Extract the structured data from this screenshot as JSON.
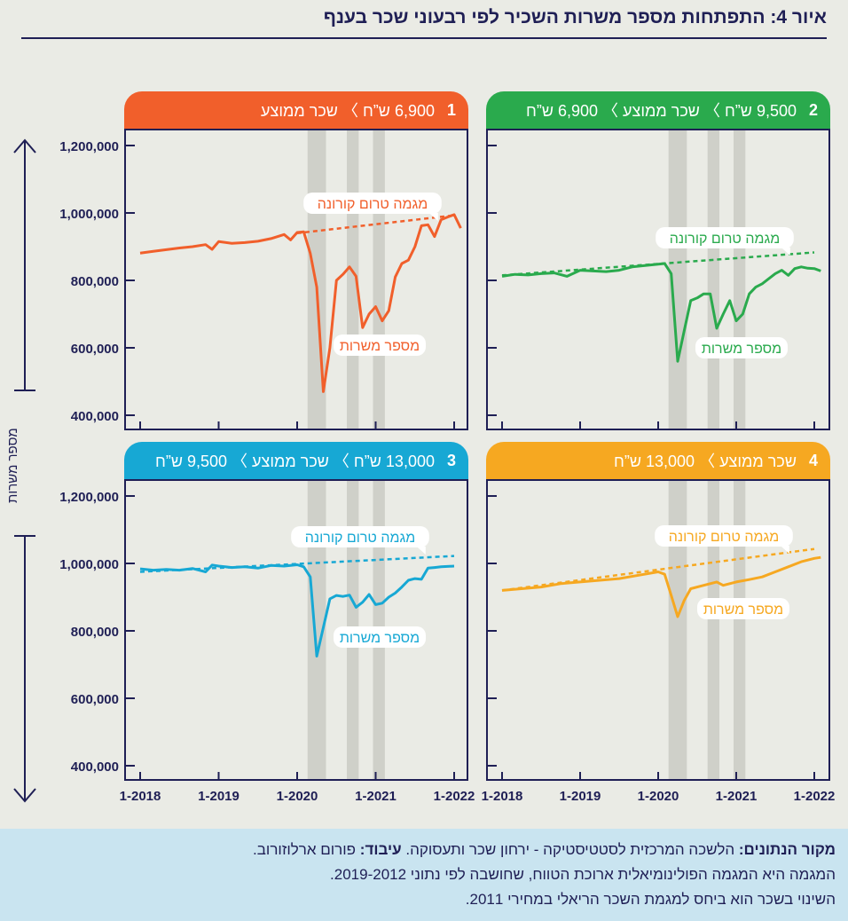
{
  "title": "איור 4: התפתחות מספר משרות השכיר לפי רבעוני שכר בענף",
  "y_axis_title": "מספר משרות",
  "colors": {
    "navy": "#1f1f55",
    "panel1": "#f15f2b",
    "panel2": "#2aaa4d",
    "panel3": "#17a8d4",
    "panel4": "#f6a821",
    "shade": "#cfd0c9"
  },
  "panels": [
    {
      "id": "1",
      "number": "1",
      "header": "6,900 ש”ח  〉 שכר ממוצע",
      "color": "#f15f2b"
    },
    {
      "id": "2",
      "number": "2",
      "header": "9,500 ש”ח 〉 שכר ממוצע 〉 6,900 ש”ח",
      "color": "#2aaa4d"
    },
    {
      "id": "3",
      "number": "3",
      "header": "13,000 ש”ח 〉 שכר ממוצע 〉 9,500 ש”ח",
      "color": "#17a8d4"
    },
    {
      "id": "4",
      "number": "4",
      "header": "שכר ממוצע 〉 13,000 ש”ח",
      "color": "#f6a821"
    }
  ],
  "footer": {
    "source_label": "מקור הנתונים:",
    "source_text": " הלשכה המרכזית לסטטיסטיקה - ירחון שכר ותעסוקה. ",
    "processing_label": "עיבוד:",
    "processing_text": " פורום ארלוזורוב.",
    "line2": "המגמה היא המגמה הפולינומיאלית ארוכת הטווח, שחושבה לפי נתוני 2019-2012.",
    "line3": "השינוי בשכר הוא ביחס למגמת השכר הריאלי במחירי 2011."
  },
  "chart_data": [
    {
      "type": "line",
      "panel": "1",
      "x_ticks": [
        "1-2018",
        "1-2019",
        "1-2020",
        "1-2021",
        "1-2022"
      ],
      "y_ticks": [
        "400,000",
        "600,000",
        "800,000",
        "1,000,000",
        "1,200,000"
      ],
      "ylim": [
        370000,
        1230000
      ],
      "shaded_periods": [
        [
          "2020-03",
          "2020-05"
        ],
        [
          "2020-09",
          "2020-10"
        ],
        [
          "2021-01",
          "2021-02"
        ]
      ],
      "series": [
        {
          "name": "מספר משרות",
          "style": "solid",
          "points": [
            [
              "2018-01",
              881000
            ],
            [
              "2018-03",
              886000
            ],
            [
              "2018-05",
              891000
            ],
            [
              "2018-07",
              896000
            ],
            [
              "2018-09",
              900000
            ],
            [
              "2018-11",
              906000
            ],
            [
              "2018-12",
              892000
            ],
            [
              "2019-01",
              915000
            ],
            [
              "2019-03",
              910000
            ],
            [
              "2019-05",
              912000
            ],
            [
              "2019-07",
              916000
            ],
            [
              "2019-09",
              924000
            ],
            [
              "2019-11",
              936000
            ],
            [
              "2019-12",
              920000
            ],
            [
              "2020-01",
              942000
            ],
            [
              "2020-02",
              944000
            ],
            [
              "2020-03",
              880000
            ],
            [
              "2020-04",
              780000
            ],
            [
              "2020-05",
              470000
            ],
            [
              "2020-06",
              600000
            ],
            [
              "2020-07",
              800000
            ],
            [
              "2020-08",
              818000
            ],
            [
              "2020-09",
              840000
            ],
            [
              "2020-10",
              812000
            ],
            [
              "2020-11",
              660000
            ],
            [
              "2020-12",
              700000
            ],
            [
              "2021-01",
              722000
            ],
            [
              "2021-02",
              680000
            ],
            [
              "2021-03",
              710000
            ],
            [
              "2021-04",
              810000
            ],
            [
              "2021-05",
              850000
            ],
            [
              "2021-06",
              860000
            ],
            [
              "2021-07",
              900000
            ],
            [
              "2021-08",
              962000
            ],
            [
              "2021-09",
              965000
            ],
            [
              "2021-10",
              930000
            ],
            [
              "2021-11",
              980000
            ],
            [
              "2021-12",
              988000
            ],
            [
              "2022-01",
              995000
            ],
            [
              "2022-02",
              955000
            ]
          ]
        },
        {
          "name": "מגמה טרום קורונה",
          "style": "dashed",
          "points": [
            [
              "2020-01",
              940000
            ],
            [
              "2022-01",
              993000
            ]
          ]
        }
      ],
      "annotations": [
        {
          "text": "מגמה טרום קורונה",
          "target": "trend"
        },
        {
          "text": "מספר משרות",
          "target": "series"
        }
      ]
    },
    {
      "type": "line",
      "panel": "2",
      "x_ticks": [
        "1-2018",
        "1-2019",
        "1-2020",
        "1-2021",
        "1-2022"
      ],
      "ylim": [
        370000,
        1230000
      ],
      "shaded_periods": [
        [
          "2020-03",
          "2020-05"
        ],
        [
          "2020-09",
          "2020-10"
        ],
        [
          "2021-01",
          "2021-02"
        ]
      ],
      "series": [
        {
          "name": "מספר משרות",
          "style": "solid",
          "points": [
            [
              "2018-01",
              812000
            ],
            [
              "2018-03",
              818000
            ],
            [
              "2018-05",
              816000
            ],
            [
              "2018-07",
              820000
            ],
            [
              "2018-09",
              822000
            ],
            [
              "2018-11",
              812000
            ],
            [
              "2019-01",
              830000
            ],
            [
              "2019-03",
              828000
            ],
            [
              "2019-05",
              826000
            ],
            [
              "2019-07",
              830000
            ],
            [
              "2019-09",
              840000
            ],
            [
              "2019-11",
              844000
            ],
            [
              "2020-01",
              848000
            ],
            [
              "2020-02",
              850000
            ],
            [
              "2020-03",
              820000
            ],
            [
              "2020-04",
              560000
            ],
            [
              "2020-05",
              650000
            ],
            [
              "2020-06",
              740000
            ],
            [
              "2020-07",
              748000
            ],
            [
              "2020-08",
              760000
            ],
            [
              "2020-09",
              760000
            ],
            [
              "2020-10",
              658000
            ],
            [
              "2020-11",
              700000
            ],
            [
              "2020-12",
              740000
            ],
            [
              "2021-01",
              680000
            ],
            [
              "2021-02",
              700000
            ],
            [
              "2021-03",
              760000
            ],
            [
              "2021-04",
              780000
            ],
            [
              "2021-05",
              790000
            ],
            [
              "2021-06",
              805000
            ],
            [
              "2021-07",
              820000
            ],
            [
              "2021-08",
              830000
            ],
            [
              "2021-09",
              815000
            ],
            [
              "2021-10",
              835000
            ],
            [
              "2021-11",
              840000
            ],
            [
              "2021-12",
              836000
            ],
            [
              "2022-01",
              835000
            ],
            [
              "2022-02",
              828000
            ]
          ]
        },
        {
          "name": "מגמה טרום קורונה",
          "style": "dashed",
          "points": [
            [
              "2018-01",
              815000
            ],
            [
              "2022-01",
              883000
            ]
          ]
        }
      ],
      "annotations": [
        {
          "text": "מגמה טרום קורונה",
          "target": "trend"
        },
        {
          "text": "מספר משרות",
          "target": "series"
        }
      ]
    },
    {
      "type": "line",
      "panel": "3",
      "x_ticks": [
        "1-2018",
        "1-2019",
        "1-2020",
        "1-2021",
        "1-2022"
      ],
      "y_ticks": [
        "400,000",
        "600,000",
        "800,000",
        "1,000,000",
        "1,200,000"
      ],
      "ylim": [
        370000,
        1230000
      ],
      "shaded_periods": [
        [
          "2020-03",
          "2020-05"
        ],
        [
          "2020-09",
          "2020-10"
        ],
        [
          "2021-01",
          "2021-02"
        ]
      ],
      "series": [
        {
          "name": "מספר משרות",
          "style": "solid",
          "points": [
            [
              "2018-01",
              984000
            ],
            [
              "2018-03",
              980000
            ],
            [
              "2018-05",
              982000
            ],
            [
              "2018-07",
              980000
            ],
            [
              "2018-09",
              985000
            ],
            [
              "2018-11",
              975000
            ],
            [
              "2018-12",
              995000
            ],
            [
              "2019-01",
              992000
            ],
            [
              "2019-03",
              988000
            ],
            [
              "2019-05",
              990000
            ],
            [
              "2019-07",
              986000
            ],
            [
              "2019-09",
              994000
            ],
            [
              "2019-11",
              992000
            ],
            [
              "2020-01",
              996000
            ],
            [
              "2020-02",
              990000
            ],
            [
              "2020-03",
              960000
            ],
            [
              "2020-04",
              725000
            ],
            [
              "2020-05",
              810000
            ],
            [
              "2020-06",
              895000
            ],
            [
              "2020-07",
              905000
            ],
            [
              "2020-08",
              902000
            ],
            [
              "2020-09",
              906000
            ],
            [
              "2020-10",
              870000
            ],
            [
              "2020-11",
              885000
            ],
            [
              "2020-12",
              908000
            ],
            [
              "2021-01",
              878000
            ],
            [
              "2021-02",
              882000
            ],
            [
              "2021-03",
              900000
            ],
            [
              "2021-04",
              912000
            ],
            [
              "2021-05",
              930000
            ],
            [
              "2021-06",
              950000
            ],
            [
              "2021-07",
              955000
            ],
            [
              "2021-08",
              953000
            ],
            [
              "2021-09",
              986000
            ],
            [
              "2021-10",
              988000
            ],
            [
              "2021-11",
              990000
            ],
            [
              "2022-01",
              992000
            ]
          ]
        },
        {
          "name": "מגמה טרום קורונה",
          "style": "dashed",
          "points": [
            [
              "2018-01",
              975000
            ],
            [
              "2022-01",
              1022000
            ]
          ]
        }
      ],
      "annotations": [
        {
          "text": "מגמה טרום קורונה",
          "target": "trend"
        },
        {
          "text": "מספר משרות",
          "target": "series"
        }
      ]
    },
    {
      "type": "line",
      "panel": "4",
      "x_ticks": [
        "1-2018",
        "1-2019",
        "1-2020",
        "1-2021",
        "1-2022"
      ],
      "ylim": [
        370000,
        1230000
      ],
      "shaded_periods": [
        [
          "2020-03",
          "2020-05"
        ],
        [
          "2020-09",
          "2020-10"
        ],
        [
          "2021-01",
          "2021-02"
        ]
      ],
      "series": [
        {
          "name": "מספר משרות",
          "style": "solid",
          "points": [
            [
              "2018-01",
              920000
            ],
            [
              "2018-04",
              925000
            ],
            [
              "2018-07",
              930000
            ],
            [
              "2018-10",
              940000
            ],
            [
              "2019-01",
              945000
            ],
            [
              "2019-04",
              950000
            ],
            [
              "2019-07",
              955000
            ],
            [
              "2019-10",
              965000
            ],
            [
              "2020-01",
              975000
            ],
            [
              "2020-02",
              968000
            ],
            [
              "2020-03",
              905000
            ],
            [
              "2020-04",
              842000
            ],
            [
              "2020-05",
              890000
            ],
            [
              "2020-06",
              925000
            ],
            [
              "2020-08",
              935000
            ],
            [
              "2020-10",
              945000
            ],
            [
              "2020-11",
              935000
            ],
            [
              "2021-01",
              945000
            ],
            [
              "2021-03",
              952000
            ],
            [
              "2021-05",
              960000
            ],
            [
              "2021-07",
              975000
            ],
            [
              "2021-09",
              990000
            ],
            [
              "2021-11",
              1005000
            ],
            [
              "2022-01",
              1015000
            ],
            [
              "2022-02",
              1018000
            ]
          ]
        },
        {
          "name": "מגמה טרום קורונה",
          "style": "dashed",
          "points": [
            [
              "2018-01",
              920000
            ],
            [
              "2022-01",
              1043000
            ]
          ]
        }
      ],
      "annotations": [
        {
          "text": "מגמה טרום קורונה",
          "target": "trend"
        },
        {
          "text": "מספר משרות",
          "target": "series"
        }
      ]
    }
  ]
}
